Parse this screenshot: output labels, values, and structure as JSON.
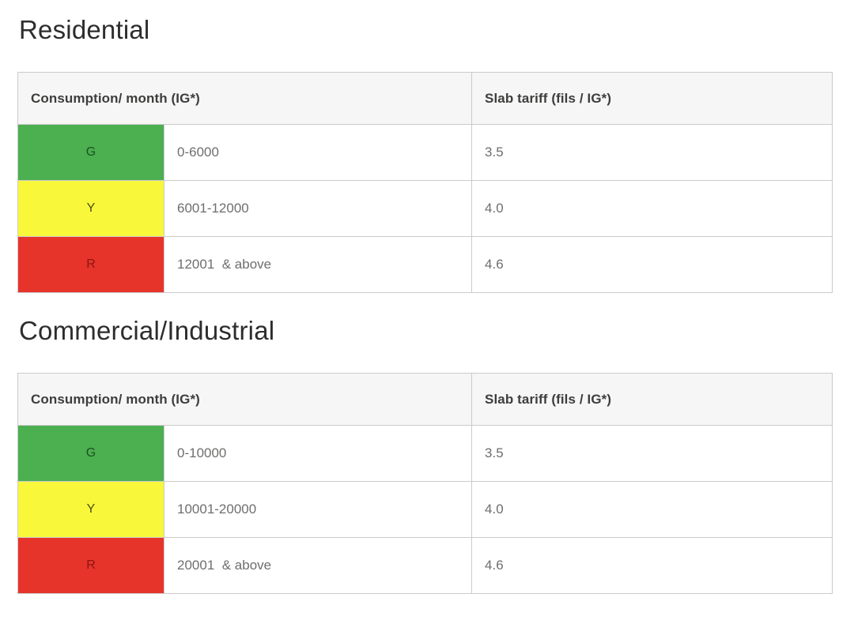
{
  "colors": {
    "page_background": "#ffffff",
    "heading_text": "#2d2d2d",
    "header_cell_background": "#f6f6f6",
    "header_cell_text": "#3d3d3c",
    "body_cell_text": "#6e6e6d",
    "table_border": "#cbcbcb",
    "green": "#4caf50",
    "yellow": "#f8f73a",
    "red": "#e6342b"
  },
  "sections": [
    {
      "title": "Residential",
      "table": {
        "consumption_header": "Consumption/ month (IG*)",
        "tariff_header": "Slab tariff (fils / IG*)",
        "rows": [
          {
            "code": "G",
            "color_name": "green",
            "bg": "#4caf50",
            "fg": "#1d5324",
            "range": "0-6000",
            "tariff": "3.5"
          },
          {
            "code": "Y",
            "color_name": "yellow",
            "bg": "#f8f73a",
            "fg": "#4b4f1e",
            "range": "6001-12000",
            "tariff": "4.0"
          },
          {
            "code": "R",
            "color_name": "red",
            "bg": "#e6342b",
            "fg": "#8c150e",
            "range": "12001  & above",
            "tariff": "4.6"
          }
        ]
      }
    },
    {
      "title": "Commercial/Industrial",
      "table": {
        "consumption_header": "Consumption/ month (IG*)",
        "tariff_header": "Slab tariff (fils / IG*)",
        "rows": [
          {
            "code": "G",
            "color_name": "green",
            "bg": "#4caf50",
            "fg": "#1d5324",
            "range": "0-10000",
            "tariff": "3.5"
          },
          {
            "code": "Y",
            "color_name": "yellow",
            "bg": "#f8f73a",
            "fg": "#4b4f1e",
            "range": "10001-20000",
            "tariff": "4.0"
          },
          {
            "code": "R",
            "color_name": "red",
            "bg": "#e6342b",
            "fg": "#8c150e",
            "range": "20001  & above",
            "tariff": "4.6"
          }
        ]
      }
    }
  ]
}
